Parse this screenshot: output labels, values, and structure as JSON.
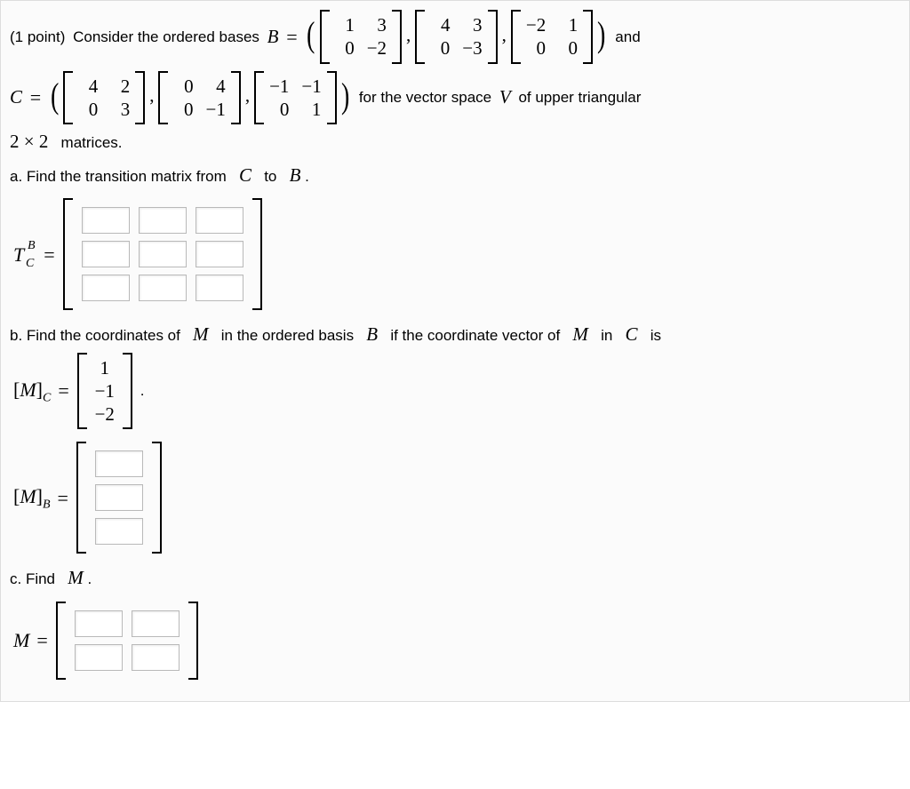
{
  "points": "(1 point)",
  "intro1": "Consider the ordered bases",
  "B_symbol": "B",
  "eq": "=",
  "open_paren": "(",
  "close_paren": ")",
  "and": "and",
  "C_symbol": "C",
  "for_text": "for the vector space",
  "V_symbol": "V",
  "of_text": "of upper triangular",
  "two_by_two": "2 × 2",
  "matrices_text": "matrices.",
  "basis_B": [
    [
      [
        "1",
        "3"
      ],
      [
        "0",
        "−2"
      ]
    ],
    [
      [
        "4",
        "3"
      ],
      [
        "0",
        "−3"
      ]
    ],
    [
      [
        "−2",
        "1"
      ],
      [
        "0",
        "0"
      ]
    ]
  ],
  "basis_C": [
    [
      [
        "4",
        "2"
      ],
      [
        "0",
        "3"
      ]
    ],
    [
      [
        "0",
        "4"
      ],
      [
        "0",
        "−1"
      ]
    ],
    [
      [
        "−1",
        "−1"
      ],
      [
        "0",
        "1"
      ]
    ]
  ],
  "part_a": "a. Find the transition matrix from",
  "to_text": "to",
  "period": ".",
  "T_label": {
    "T": "T",
    "sup": "B",
    "sub": "C"
  },
  "part_b1": "b. Find the coordinates of",
  "M_symbol": "M",
  "part_b2": "in the ordered basis",
  "part_b3": "if the coordinate vector of",
  "in_text": "in",
  "is_text": "is",
  "MC_vec": [
    "1",
    "−1",
    "−2"
  ],
  "MC_label": {
    "open": "[",
    "M": "M",
    "close": "]",
    "sub": "C"
  },
  "MB_label": {
    "open": "[",
    "M": "M",
    "close": "]",
    "sub": "B"
  },
  "part_c": "c. Find",
  "M_eq_label": "M",
  "answer_dims": {
    "T": {
      "rows": 3,
      "cols": 3
    },
    "MB": {
      "rows": 3,
      "cols": 1
    },
    "M": {
      "rows": 2,
      "cols": 2
    }
  }
}
